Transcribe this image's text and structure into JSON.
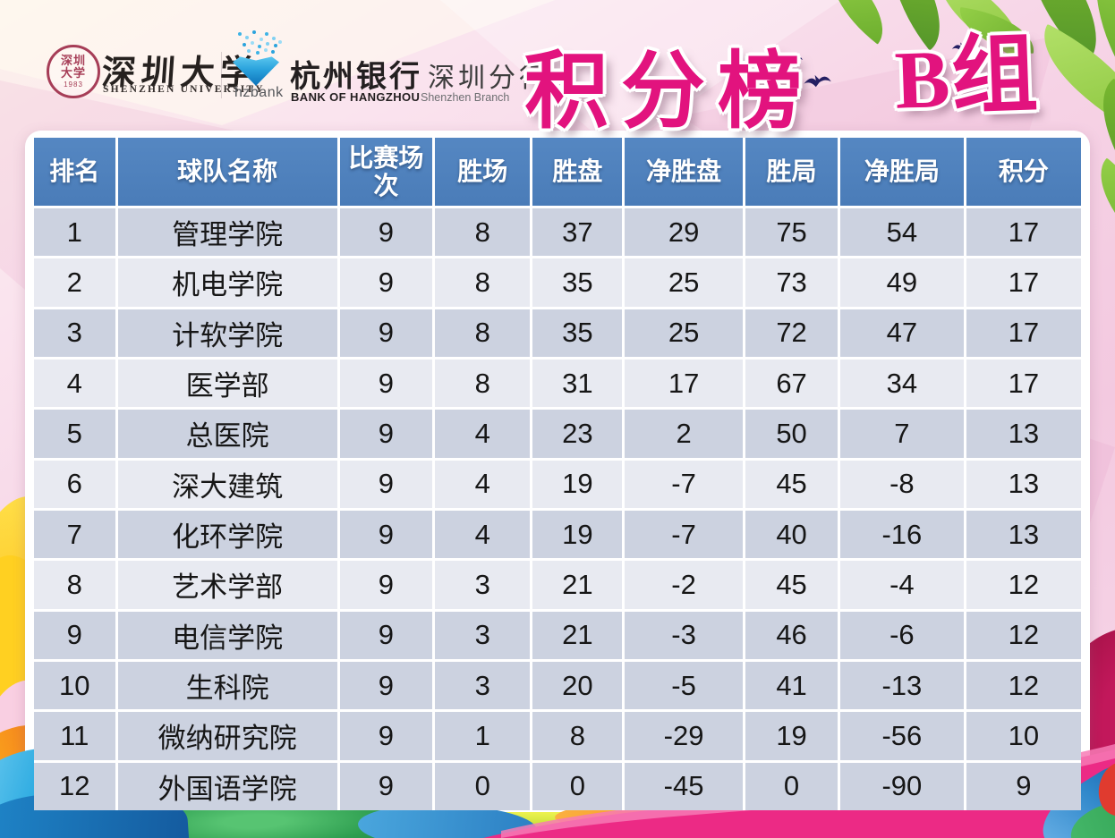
{
  "branding": {
    "university": {
      "seal_text": "深圳大学",
      "seal_year": "1983",
      "name_cn": "深圳大学",
      "name_en": "SHENZHEN UNIVERSITY"
    },
    "bank": {
      "logo_text": "hzbank",
      "name_cn": "杭州银行",
      "branch_cn": "深圳分行",
      "name_en": "BANK OF HANGZHOU",
      "branch_en": "Shenzhen Branch"
    }
  },
  "title": {
    "main": "积分榜",
    "group_letter": "B",
    "group_suffix": "组"
  },
  "table": {
    "columns": [
      "排名",
      "球队名称",
      "比赛场次",
      "胜场",
      "胜盘",
      "净胜盘",
      "胜局",
      "净胜局",
      "积分"
    ],
    "column_keys": [
      "rank",
      "team",
      "played",
      "wins",
      "sets_won",
      "net_sets",
      "games_won",
      "net_games",
      "points"
    ],
    "rows": [
      {
        "rank": "1",
        "team": "管理学院",
        "played": "9",
        "wins": "8",
        "sets_won": "37",
        "net_sets": "29",
        "games_won": "75",
        "net_games": "54",
        "points": "17",
        "shade": "dark"
      },
      {
        "rank": "2",
        "team": "机电学院",
        "played": "9",
        "wins": "8",
        "sets_won": "35",
        "net_sets": "25",
        "games_won": "73",
        "net_games": "49",
        "points": "17",
        "shade": "light"
      },
      {
        "rank": "3",
        "team": "计软学院",
        "played": "9",
        "wins": "8",
        "sets_won": "35",
        "net_sets": "25",
        "games_won": "72",
        "net_games": "47",
        "points": "17",
        "shade": "dark"
      },
      {
        "rank": "4",
        "team": "医学部",
        "played": "9",
        "wins": "8",
        "sets_won": "31",
        "net_sets": "17",
        "games_won": "67",
        "net_games": "34",
        "points": "17",
        "shade": "light"
      },
      {
        "rank": "5",
        "team": "总医院",
        "played": "9",
        "wins": "4",
        "sets_won": "23",
        "net_sets": "2",
        "games_won": "50",
        "net_games": "7",
        "points": "13",
        "shade": "dark"
      },
      {
        "rank": "6",
        "team": "深大建筑",
        "played": "9",
        "wins": "4",
        "sets_won": "19",
        "net_sets": "-7",
        "games_won": "45",
        "net_games": "-8",
        "points": "13",
        "shade": "light"
      },
      {
        "rank": "7",
        "team": "化环学院",
        "played": "9",
        "wins": "4",
        "sets_won": "19",
        "net_sets": "-7",
        "games_won": "40",
        "net_games": "-16",
        "points": "13",
        "shade": "dark"
      },
      {
        "rank": "8",
        "team": "艺术学部",
        "played": "9",
        "wins": "3",
        "sets_won": "21",
        "net_sets": "-2",
        "games_won": "45",
        "net_games": "-4",
        "points": "12",
        "shade": "light"
      },
      {
        "rank": "9",
        "team": "电信学院",
        "played": "9",
        "wins": "3",
        "sets_won": "21",
        "net_sets": "-3",
        "games_won": "46",
        "net_games": "-6",
        "points": "12",
        "shade": "dark"
      },
      {
        "rank": "10",
        "team": "生科院",
        "played": "9",
        "wins": "3",
        "sets_won": "20",
        "net_sets": "-5",
        "games_won": "41",
        "net_games": "-13",
        "points": "12",
        "shade": "dark"
      },
      {
        "rank": "11",
        "team": "微纳研究院",
        "played": "9",
        "wins": "1",
        "sets_won": "8",
        "net_sets": "-29",
        "games_won": "19",
        "net_games": "-56",
        "points": "10",
        "shade": "dark"
      },
      {
        "rank": "12",
        "team": "外国语学院",
        "played": "9",
        "wins": "0",
        "sets_won": "0",
        "net_sets": "-45",
        "games_won": "0",
        "net_games": "-90",
        "points": "9",
        "shade": "dark"
      }
    ]
  },
  "colors": {
    "title_magenta": "#E2137E",
    "header_blue": "#4E81BD",
    "row_dark": "#CCD2E0",
    "row_light": "#E8EAF1",
    "seal_red": "#A63D57",
    "hzbank_blue": "#0D72B9"
  },
  "chart_data": {
    "type": "table",
    "title": "积分榜 B组",
    "columns": [
      "排名",
      "球队名称",
      "比赛场次",
      "胜场",
      "胜盘",
      "净胜盘",
      "胜局",
      "净胜局",
      "积分"
    ],
    "rows": [
      [
        1,
        "管理学院",
        9,
        8,
        37,
        29,
        75,
        54,
        17
      ],
      [
        2,
        "机电学院",
        9,
        8,
        35,
        25,
        73,
        49,
        17
      ],
      [
        3,
        "计软学院",
        9,
        8,
        35,
        25,
        72,
        47,
        17
      ],
      [
        4,
        "医学部",
        9,
        8,
        31,
        17,
        67,
        34,
        17
      ],
      [
        5,
        "总医院",
        9,
        4,
        23,
        2,
        50,
        7,
        13
      ],
      [
        6,
        "深大建筑",
        9,
        4,
        19,
        -7,
        45,
        -8,
        13
      ],
      [
        7,
        "化环学院",
        9,
        4,
        19,
        -7,
        40,
        -16,
        13
      ],
      [
        8,
        "艺术学部",
        9,
        3,
        21,
        -2,
        45,
        -4,
        12
      ],
      [
        9,
        "电信学院",
        9,
        3,
        21,
        -3,
        46,
        -6,
        12
      ],
      [
        10,
        "生科院",
        9,
        3,
        20,
        -5,
        41,
        -13,
        12
      ],
      [
        11,
        "微纳研究院",
        9,
        1,
        8,
        -29,
        19,
        -56,
        10
      ],
      [
        12,
        "外国语学院",
        9,
        0,
        0,
        -45,
        0,
        -90,
        9
      ]
    ]
  }
}
